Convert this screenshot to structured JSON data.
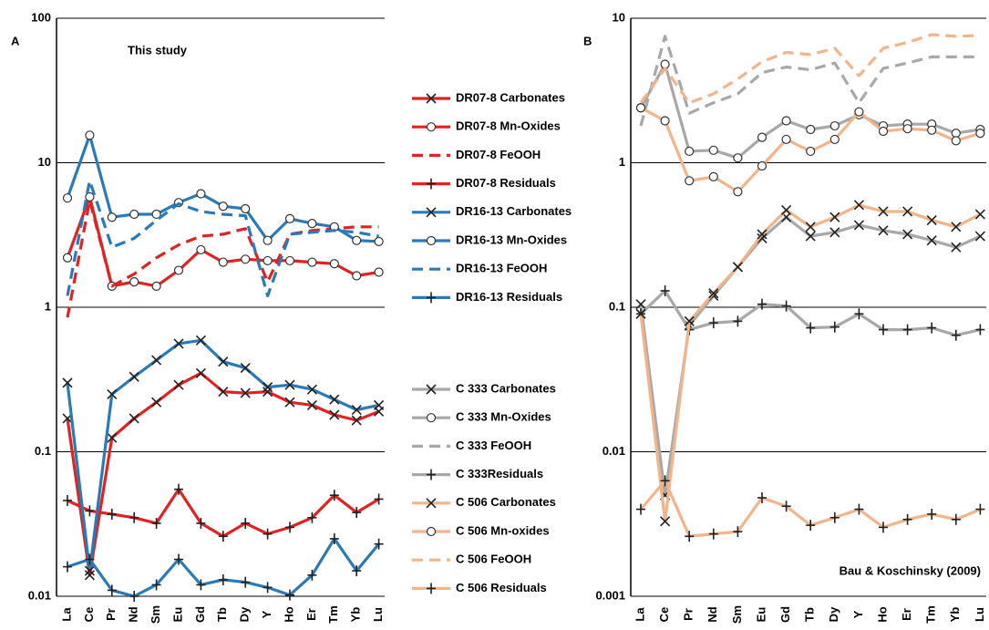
{
  "chart_data": [
    {
      "type": "line",
      "panel_label": "A",
      "annotation": "This study",
      "log_scale": true,
      "grid": true,
      "categories": [
        "La",
        "Ce",
        "Pr",
        "Nd",
        "Sm",
        "Eu",
        "Gd",
        "Tb",
        "Dy",
        "Y",
        "Ho",
        "Er",
        "Tm",
        "Yb",
        "Lu"
      ],
      "ylim": [
        0.01,
        100
      ],
      "yticks": [
        0.01,
        0.1,
        1,
        10,
        100
      ],
      "series": [
        {
          "name": "DR07-8 Carbonates",
          "color": "#e02222",
          "marker": "x",
          "dashed": false,
          "values": [
            0.17,
            0.014,
            0.125,
            0.17,
            0.22,
            0.29,
            0.35,
            0.26,
            0.255,
            0.26,
            0.22,
            0.21,
            0.18,
            0.165,
            0.19
          ]
        },
        {
          "name": "DR07-8 Mn-Oxides",
          "color": "#e02222",
          "marker": "o",
          "dashed": false,
          "values": [
            2.2,
            5.8,
            1.4,
            1.5,
            1.4,
            1.8,
            2.5,
            2.05,
            2.15,
            2.1,
            2.1,
            2.05,
            2.0,
            1.65,
            1.75
          ]
        },
        {
          "name": "DR07-8 FeOOH",
          "color": "#e02222",
          "dashed": true,
          "values": [
            0.85,
            5.5,
            1.4,
            1.7,
            2.2,
            2.7,
            3.1,
            3.2,
            3.5,
            1.5,
            3.2,
            3.4,
            3.5,
            3.6,
            3.6
          ]
        },
        {
          "name": "DR07-8 Residuals",
          "color": "#e02222",
          "marker": "+",
          "dashed": false,
          "values": [
            0.046,
            0.039,
            0.037,
            0.035,
            0.032,
            0.055,
            0.032,
            0.026,
            0.032,
            0.027,
            0.03,
            0.035,
            0.05,
            0.038,
            0.047
          ]
        },
        {
          "name": "DR16-13 Carbonates",
          "color": "#2a7ab8",
          "marker": "x",
          "dashed": false,
          "values": [
            0.3,
            0.015,
            0.25,
            0.33,
            0.43,
            0.56,
            0.59,
            0.42,
            0.38,
            0.28,
            0.29,
            0.27,
            0.23,
            0.195,
            0.21
          ]
        },
        {
          "name": "DR16-13 Mn-Oxides",
          "color": "#2a7ab8",
          "marker": "o",
          "dashed": false,
          "values": [
            5.7,
            15.5,
            4.2,
            4.4,
            4.4,
            5.3,
            6.1,
            5.0,
            4.8,
            2.9,
            4.1,
            3.8,
            3.6,
            2.9,
            2.85
          ]
        },
        {
          "name": "DR16-13 FeOOH",
          "color": "#2a7ab8",
          "dashed": true,
          "values": [
            1.2,
            7.5,
            2.6,
            3.0,
            4.0,
            5.2,
            4.6,
            4.4,
            4.3,
            1.2,
            3.2,
            3.3,
            3.4,
            3.3,
            3.1
          ]
        },
        {
          "name": "DR16-13 Residuals",
          "color": "#2a7ab8",
          "marker": "+",
          "dashed": false,
          "values": [
            0.016,
            0.018,
            0.011,
            0.01,
            0.012,
            0.018,
            0.012,
            0.013,
            0.0125,
            0.0115,
            0.0102,
            0.014,
            0.025,
            0.015,
            0.023
          ]
        }
      ]
    },
    {
      "type": "line",
      "panel_label": "B",
      "annotation": "Bau & Koschinsky (2009)",
      "log_scale": true,
      "grid": true,
      "categories": [
        "La",
        "Ce",
        "Pr",
        "Nd",
        "Sm",
        "Eu",
        "Gd",
        "Tb",
        "Dy",
        "Y",
        "Ho",
        "Er",
        "Tm",
        "Yb",
        "Lu"
      ],
      "ylim": [
        0.001,
        10
      ],
      "yticks": [
        0.001,
        0.01,
        0.1,
        1,
        10
      ],
      "series": [
        {
          "name": "C 333 Carbonates",
          "color": "#a8a8a8",
          "marker": "x",
          "dashed": false,
          "values": [
            0.105,
            0.005,
            0.075,
            0.12,
            0.19,
            0.3,
            0.42,
            0.31,
            0.33,
            0.37,
            0.34,
            0.32,
            0.29,
            0.26,
            0.31
          ]
        },
        {
          "name": "C 333 Mn-Oxides",
          "color": "#a8a8a8",
          "marker": "o",
          "dashed": false,
          "values": [
            2.4,
            4.8,
            1.2,
            1.22,
            1.08,
            1.5,
            1.95,
            1.7,
            1.8,
            2.15,
            1.8,
            1.85,
            1.85,
            1.6,
            1.7
          ]
        },
        {
          "name": "C 333 FeOOH",
          "color": "#a8a8a8",
          "dashed": true,
          "values": [
            1.8,
            7.5,
            2.2,
            2.6,
            3.0,
            4.2,
            4.6,
            4.4,
            4.9,
            2.6,
            4.5,
            4.9,
            5.4,
            5.4,
            5.4
          ]
        },
        {
          "name": "C 333Residuals",
          "color": "#a8a8a8",
          "marker": "+",
          "dashed": false,
          "values": [
            0.09,
            0.13,
            0.07,
            0.078,
            0.08,
            0.105,
            0.102,
            0.072,
            0.073,
            0.09,
            0.07,
            0.07,
            0.072,
            0.064,
            0.07
          ]
        },
        {
          "name": "C 506 Carbonates",
          "color": "#f2b48a",
          "marker": "x",
          "dashed": false,
          "values": [
            0.09,
            0.0033,
            0.08,
            0.125,
            0.19,
            0.32,
            0.47,
            0.36,
            0.42,
            0.51,
            0.46,
            0.46,
            0.4,
            0.36,
            0.44
          ]
        },
        {
          "name": "C 506 Mn-oxides",
          "color": "#f2b48a",
          "marker": "o",
          "dashed": false,
          "values": [
            2.4,
            1.95,
            0.75,
            0.8,
            0.63,
            0.95,
            1.45,
            1.2,
            1.45,
            2.25,
            1.65,
            1.72,
            1.68,
            1.42,
            1.6
          ]
        },
        {
          "name": "C 506 FeOOH",
          "color": "#f2b48a",
          "dashed": true,
          "values": [
            2.6,
            4.5,
            2.6,
            3.0,
            3.8,
            5.0,
            5.8,
            5.6,
            6.2,
            4.0,
            6.2,
            6.8,
            7.7,
            7.5,
            7.6
          ]
        },
        {
          "name": "C 506 Residuals",
          "color": "#f2b48a",
          "marker": "+",
          "dashed": false,
          "values": [
            0.004,
            0.0063,
            0.0026,
            0.0027,
            0.0028,
            0.0048,
            0.0042,
            0.0031,
            0.0035,
            0.004,
            0.003,
            0.0034,
            0.0037,
            0.0034,
            0.004
          ]
        }
      ]
    }
  ]
}
